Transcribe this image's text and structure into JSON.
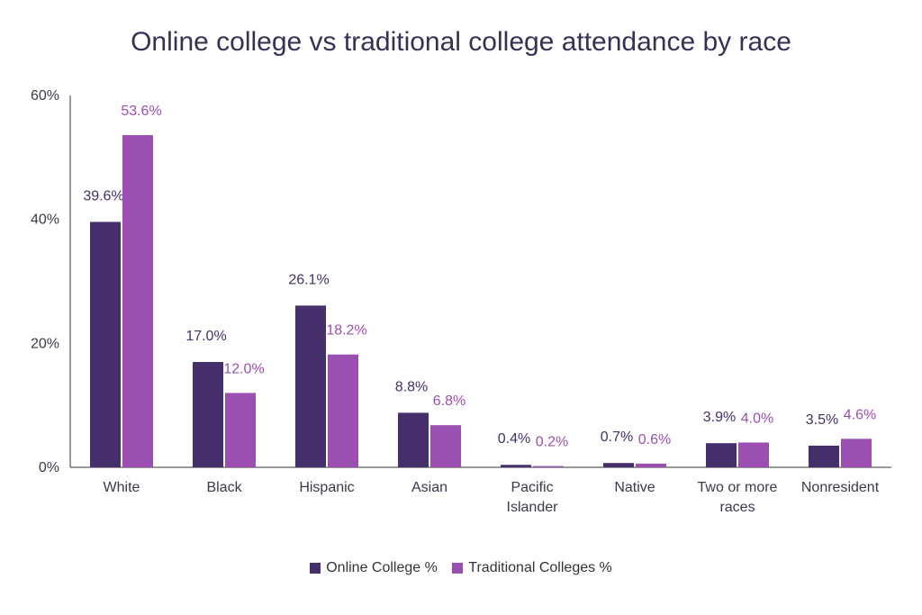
{
  "chart_data": {
    "type": "bar",
    "title": "Online college vs traditional college attendance by race",
    "categories": [
      "White",
      "Black",
      "Hispanic",
      "Asian",
      "Pacific\nIslander",
      "Native",
      "Two or more\nraces",
      "Nonresident"
    ],
    "series": [
      {
        "name": "Online College %",
        "color": "#45306b",
        "values": [
          39.6,
          17.0,
          26.1,
          8.8,
          0.4,
          0.7,
          3.9,
          3.5
        ],
        "labels": [
          "39.6%",
          "17.0%",
          "26.1%",
          "8.8%",
          "0.4%",
          "0.7%",
          "3.9%",
          "3.5%"
        ]
      },
      {
        "name": "Traditional Colleges %",
        "color": "#9b4fb0",
        "values": [
          53.6,
          12.0,
          18.2,
          6.8,
          0.2,
          0.6,
          4.0,
          4.6
        ],
        "labels": [
          "53.6%",
          "12.0%",
          "18.2%",
          "6.8%",
          "0.2%",
          "0.6%",
          "4.0%",
          "4.6%"
        ]
      }
    ],
    "ylim": [
      0,
      60
    ],
    "yticks": [
      "0%",
      "20%",
      "40%",
      "60%"
    ],
    "ytick_values": [
      0,
      20,
      40,
      60
    ],
    "grid": false,
    "legend_position": "bottom-center"
  }
}
